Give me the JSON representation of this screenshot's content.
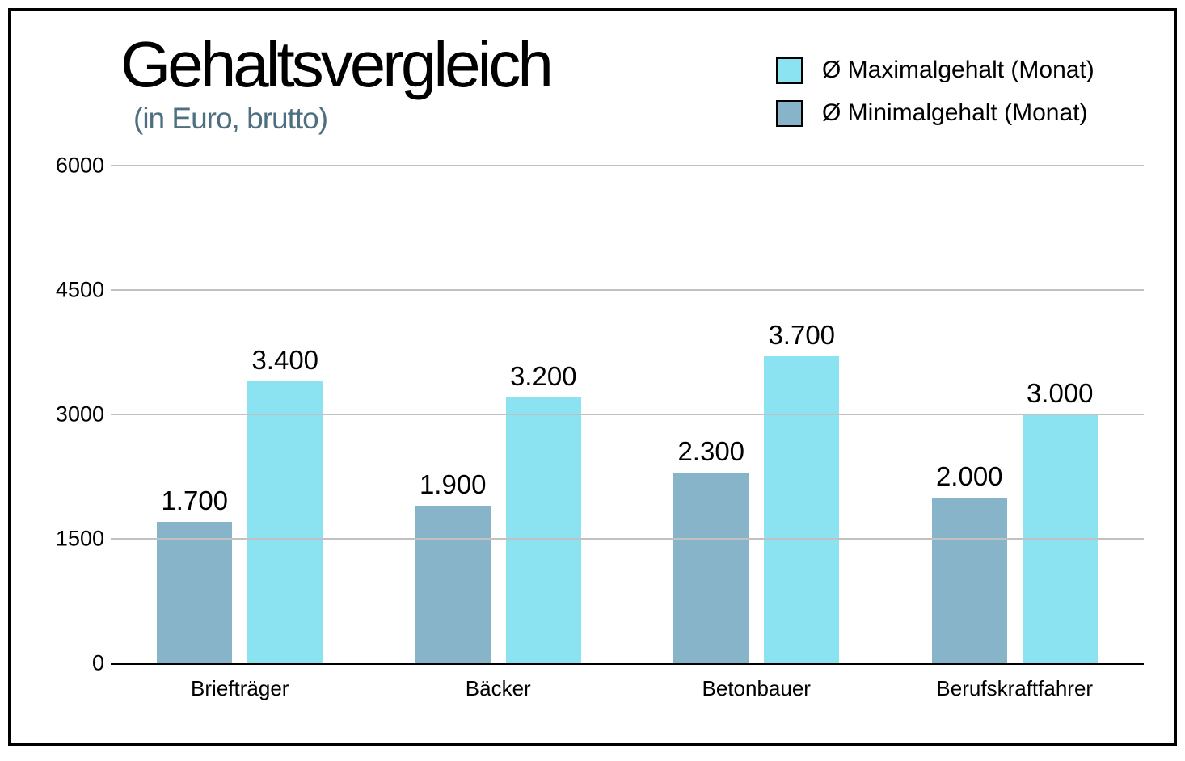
{
  "header": {
    "title": "Gehaltsvergleich",
    "subtitle": "(in Euro, brutto)"
  },
  "legend": [
    {
      "label": "Ø Maximalgehalt (Monat)",
      "color": "#8be2f0",
      "series": "max"
    },
    {
      "label": "Ø Minimalgehalt (Monat)",
      "color": "#87b4c8",
      "series": "min"
    }
  ],
  "chart_data": {
    "type": "bar",
    "title": "Gehaltsvergleich",
    "subtitle": "(in Euro, brutto)",
    "xlabel": "",
    "ylabel": "",
    "categories": [
      "Briefträger",
      "Bäcker",
      "Betonbauer",
      "Berufskraftfahrer"
    ],
    "series": [
      {
        "name": "Ø Minimalgehalt (Monat)",
        "key": "min",
        "color": "#87b4c8",
        "values": [
          1700,
          1900,
          2300,
          2000
        ],
        "labels": [
          "1.700",
          "1.900",
          "2.300",
          "2.000"
        ]
      },
      {
        "name": "Ø Maximalgehalt (Monat)",
        "key": "max",
        "color": "#8be2f0",
        "values": [
          3400,
          3200,
          3700,
          3000
        ],
        "labels": [
          "3.400",
          "3.200",
          "3.700",
          "3.000"
        ]
      }
    ],
    "ylim": [
      0,
      6000
    ],
    "yticks": [
      0,
      1500,
      3000,
      4500,
      6000
    ],
    "ytick_labels": [
      "0",
      "1500",
      "3000",
      "4500",
      "6000"
    ],
    "grid": true,
    "legend_position": "top-right"
  },
  "colors": {
    "max_bar": "#8be2f0",
    "min_bar": "#87b4c8",
    "subtitle_text": "#4e6f80",
    "gridline": "#c1c1c1",
    "axis_line": "#000000",
    "frame_border": "#000000",
    "background": "#ffffff"
  }
}
